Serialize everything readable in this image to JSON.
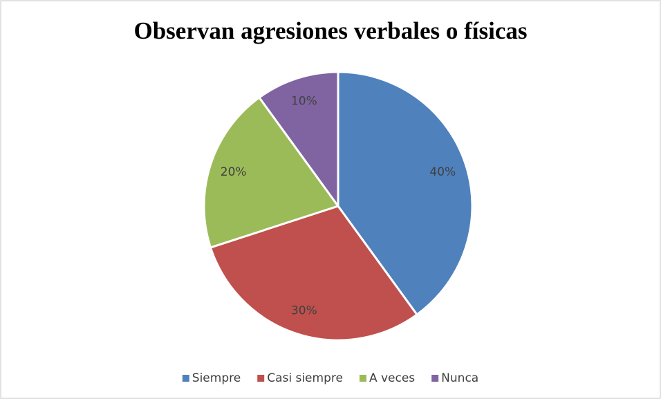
{
  "chart_data": {
    "type": "pie",
    "title": "Observan agresiones verbales o físicas",
    "categories": [
      "Siempre",
      "Casi siempre",
      "A veces",
      "Nunca"
    ],
    "values": [
      40,
      30,
      20,
      10
    ],
    "value_labels": [
      "40%",
      "30%",
      "20%",
      "10%"
    ],
    "colors": [
      "#4f81bd",
      "#c0504d",
      "#9bbb59",
      "#8064a2"
    ],
    "legend": "bottom"
  }
}
